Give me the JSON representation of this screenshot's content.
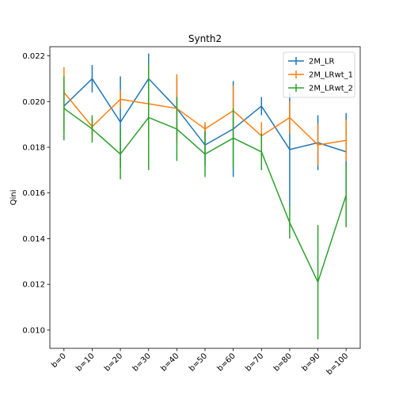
{
  "chart_data": {
    "type": "line",
    "title": "Synth2",
    "xlabel": "",
    "ylabel": "Qini",
    "categories": [
      "b=0",
      "b=10",
      "b=20",
      "b=30",
      "b=40",
      "b=50",
      "b=60",
      "b=70",
      "b=80",
      "b=90",
      "b=100"
    ],
    "ylim": [
      0.0092,
      0.0224
    ],
    "yticks": [
      0.01,
      0.012,
      0.014,
      0.016,
      0.018,
      0.02,
      0.022
    ],
    "ytick_labels": [
      "0.010",
      "0.012",
      "0.014",
      "0.016",
      "0.018",
      "0.020",
      "0.022"
    ],
    "grid": false,
    "legend_position": "top-right",
    "error_bars": true,
    "series": [
      {
        "name": "2M_LR",
        "color": "#1f77b4",
        "values": [
          0.0198,
          0.021,
          0.0191,
          0.021,
          0.0197,
          0.0181,
          0.0188,
          0.0198,
          0.0179,
          0.0182,
          0.0178
        ],
        "errors": [
          0.0011,
          0.0006,
          0.002,
          0.0011,
          0.0013,
          0.0009,
          0.0021,
          0.0004,
          0.0025,
          0.0012,
          0.0017
        ]
      },
      {
        "name": "2M_LRwt_1",
        "color": "#ff7f0e",
        "values": [
          0.0204,
          0.0189,
          0.0201,
          0.0199,
          0.0197,
          0.0188,
          0.0196,
          0.0185,
          0.0193,
          0.0181,
          0.0183
        ],
        "errors": [
          0.0011,
          0.0004,
          0.0004,
          0.0016,
          0.0015,
          0.0003,
          0.0011,
          0.0006,
          0.0007,
          0.0009,
          0.0009
        ]
      },
      {
        "name": "2M_LRwt_2",
        "color": "#2ca02c",
        "values": [
          0.0197,
          0.0188,
          0.0177,
          0.0193,
          0.0188,
          0.0177,
          0.0184,
          0.0178,
          0.0147,
          0.0121,
          0.0159
        ],
        "errors": [
          0.0014,
          0.0006,
          0.0011,
          0.0023,
          0.0014,
          0.001,
          0.0013,
          0.0008,
          0.0007,
          0.0025,
          0.0014
        ]
      }
    ]
  }
}
